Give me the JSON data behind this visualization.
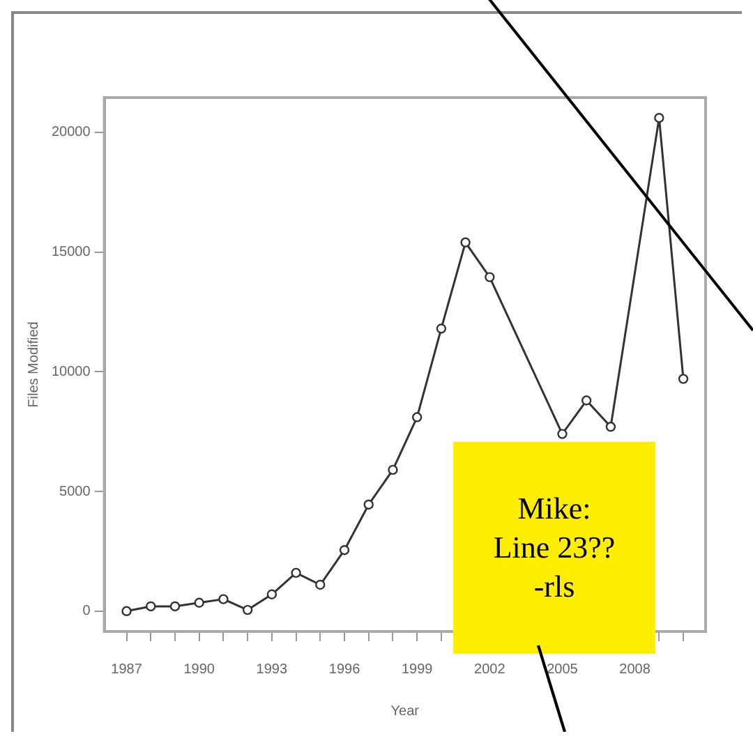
{
  "chart_data": {
    "type": "line",
    "xlabel": "Year",
    "ylabel": "Files Modified",
    "x": [
      1987,
      1988,
      1989,
      1990,
      1991,
      1992,
      1993,
      1994,
      1995,
      1996,
      1997,
      1998,
      1999,
      2000,
      2001,
      2002,
      2003,
      2004,
      2005,
      2006,
      2007,
      2008,
      2009,
      2010
    ],
    "series": [
      {
        "color": "#333333",
        "values": [
          0,
          200,
          200,
          350,
          500,
          50,
          700,
          1600,
          1100,
          2550,
          4450,
          5900,
          8100,
          11800,
          15400,
          13950,
          null,
          null,
          7400,
          8800,
          7700,
          null,
          20600,
          9700
        ]
      }
    ],
    "xlim": [
      1986.08,
      2010.92
    ],
    "ylim": [
      -850,
      21450
    ],
    "xticks": [
      1987,
      {
        "value": 1988,
        "label": null
      },
      {
        "value": 1989,
        "label": null
      },
      1990,
      {
        "value": 1991,
        "label": null
      },
      {
        "value": 1992,
        "label": null
      },
      1993,
      {
        "value": 1994,
        "label": null
      },
      {
        "value": 1995,
        "label": null
      },
      1996,
      {
        "value": 1997,
        "label": null
      },
      {
        "value": 1998,
        "label": null
      },
      1999,
      {
        "value": 2000,
        "label": null
      },
      {
        "value": 2001,
        "label": null
      },
      2002,
      {
        "value": 2003,
        "label": null
      },
      {
        "value": 2004,
        "label": null
      },
      2005,
      {
        "value": 2006,
        "label": null
      },
      {
        "value": 2007,
        "label": null
      },
      2008,
      {
        "value": 2009,
        "label": null
      },
      {
        "value": 2010,
        "label": null
      }
    ],
    "yticks": [
      0,
      5000,
      10000,
      15000,
      20000
    ],
    "grid": false,
    "legend": false,
    "marker": "circle",
    "line_style": "solid",
    "annotations": [
      "Mike:\nLine 23??\n-rls"
    ]
  }
}
